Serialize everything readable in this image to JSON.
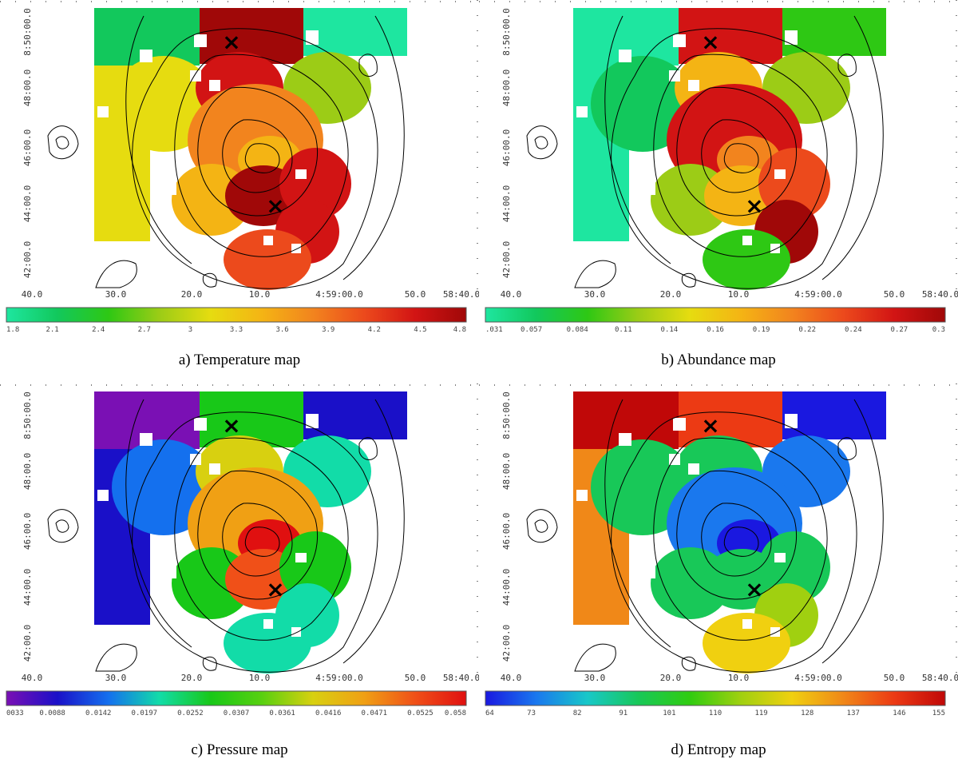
{
  "panels": [
    {
      "caption": "a) Temperature map",
      "colorbar_labels": [
        "1.8",
        "2.1",
        "2.4",
        "2.7",
        "3",
        "3.3",
        "3.6",
        "3.9",
        "4.2",
        "4.5",
        "4.8"
      ],
      "colormap": [
        "#1ee6a0",
        "#12c85c",
        "#2ec814",
        "#9ccc16",
        "#e6dc10",
        "#f4b414",
        "#f2841e",
        "#ec4a1c",
        "#d21414",
        "#a00808"
      ],
      "scale": "temperature"
    },
    {
      "caption": "b) Abundance map",
      "colorbar_labels": [
        ".031",
        "0.057",
        "0.084",
        "0.11",
        "0.14",
        "0.16",
        "0.19",
        "0.22",
        "0.24",
        "0.27",
        "0.3"
      ],
      "colormap": [
        "#1ee6a0",
        "#12c85c",
        "#2ec814",
        "#9ccc16",
        "#e6dc10",
        "#f4b414",
        "#f2841e",
        "#ec4a1c",
        "#d21414",
        "#a00808"
      ],
      "scale": "abundance"
    },
    {
      "caption": "c) Pressure map",
      "colorbar_labels": [
        "0033",
        "0.0088",
        "0.0142",
        "0.0197",
        "0.0252",
        "0.0307",
        "0.0361",
        "0.0416",
        "0.0471",
        "0.0525",
        "0.058"
      ],
      "colormap": [
        "#7a10b4",
        "#1a10c8",
        "#1470ee",
        "#12dca8",
        "#18c818",
        "#58d010",
        "#d8d010",
        "#f0a014",
        "#f05018",
        "#e01010"
      ],
      "scale": "pressure"
    },
    {
      "caption": "d) Entropy map",
      "colorbar_labels": [
        "64",
        "73",
        "82",
        "91",
        "101",
        "110",
        "119",
        "128",
        "137",
        "146",
        "155"
      ],
      "colormap": [
        "#1a18e0",
        "#1a78ee",
        "#18c8c8",
        "#18c858",
        "#30cc10",
        "#a0d010",
        "#f0d010",
        "#f08818",
        "#ec3a14",
        "#c00808"
      ],
      "scale": "entropy"
    }
  ],
  "axes": {
    "y_labels": [
      "8:50:00.0",
      "48:00.0",
      "46:00.0",
      "44:00.0",
      "42:00.0"
    ],
    "x_labels": [
      "40.0",
      "30.0",
      "20.0",
      "10.0",
      "4:59:00.0",
      "50.0",
      "58:40.0"
    ]
  },
  "marker_symbol": "×"
}
